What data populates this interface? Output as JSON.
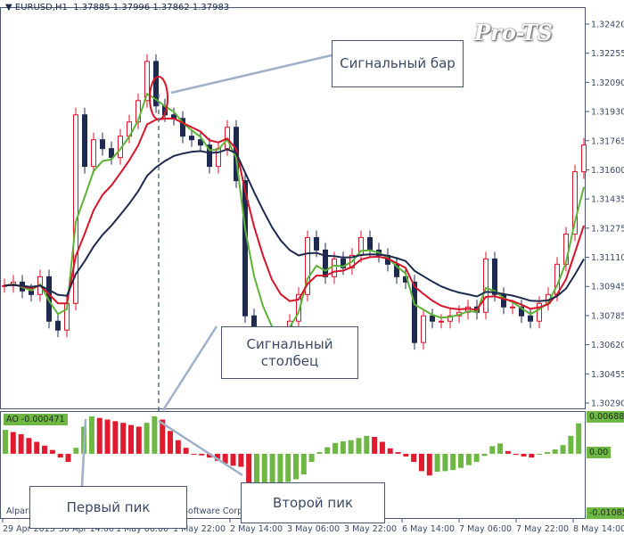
{
  "header": {
    "symbol": "EURUSD,H1",
    "ohlc": "1.37885 1.37996 1.37862 1.37983"
  },
  "watermark": "Pro-TS",
  "annotations": {
    "signal_bar": "Сигнальный бар",
    "signal_column": "Сигнальный столбец",
    "first_peak": "Первый пик",
    "second_peak": "Второй пик"
  },
  "footer": {
    "left": "Alpari",
    "right": "Software Corp"
  },
  "colors": {
    "bull": "#d8132a",
    "bear": "#1e2b4e",
    "fast_ma": "#5cb335",
    "mid_ma": "#d8132a",
    "slow_ma": "#1e2b4e",
    "ao_up": "#6fb744",
    "ao_down": "#e01b2f",
    "annotation_line": "#9fb0c8"
  },
  "chart_data": [
    {
      "type": "candlestick",
      "title": "EURUSD,H1",
      "ylim": [
        1.3029,
        1.3242
      ],
      "y_ticks": [
        "1.32420",
        "1.32255",
        "1.32090",
        "1.31930",
        "1.31765",
        "1.31600",
        "1.31435",
        "1.31275",
        "1.31110",
        "1.30945",
        "1.30785",
        "1.30620",
        "1.30455",
        "1.30290"
      ],
      "x_ticks": [
        "29 Apr 2013",
        "30 Apr 14:00",
        "1 May 06:00",
        "1 May 22:00",
        "2 May 14:00",
        "3 May 06:00",
        "3 May 22:00",
        "6 May 14:00",
        "7 May 06:00",
        "7 May 22:00",
        "8 May 14:00"
      ],
      "close": [
        1.3095,
        1.3097,
        1.3092,
        1.309,
        1.31,
        1.3075,
        1.307,
        1.3085,
        1.3191,
        1.3162,
        1.3177,
        1.3172,
        1.3167,
        1.3179,
        1.3187,
        1.3199,
        1.3221,
        1.3196,
        1.3191,
        1.3189,
        1.3179,
        1.3177,
        1.3174,
        1.3162,
        1.3172,
        1.3184,
        1.3154,
        1.3078,
        1.3068,
        1.3063,
        1.3058,
        1.3065,
        1.3075,
        1.309,
        1.3122,
        1.3115,
        1.31,
        1.311,
        1.3105,
        1.3112,
        1.3122,
        1.3115,
        1.3112,
        1.3107,
        1.31,
        1.3097,
        1.3063,
        1.3078,
        1.3075,
        1.3075,
        1.3078,
        1.308,
        1.3083,
        1.308,
        1.311,
        1.309,
        1.3083,
        1.3083,
        1.3078,
        1.3075,
        1.3085,
        1.309,
        1.3107,
        1.3124,
        1.3159,
        1.3174
      ]
    },
    {
      "type": "bar",
      "title": "AO",
      "label": "AO -0.000471",
      "ylim": [
        -0.010857,
        0.006881
      ],
      "y_ticks": [
        "0.006881",
        "0.00",
        "-0.010857"
      ],
      "values": [
        0.0044,
        0.004,
        0.0036,
        0.0029,
        0.0022,
        0.0015,
        0.0007,
        -0.0007,
        -0.0015,
        0.0011,
        0.005,
        0.0069,
        0.0066,
        0.0063,
        0.006,
        0.0057,
        0.0053,
        0.005,
        0.0057,
        0.0069,
        0.0063,
        0.0042,
        0.0025,
        0.0011,
        -0.0001,
        -0.0003,
        -0.0007,
        -0.0013,
        -0.0018,
        -0.0022,
        -0.0024,
        -0.0076,
        -0.007,
        -0.006,
        -0.0058,
        -0.0056,
        -0.0052,
        -0.0047,
        -0.0038,
        -0.0015,
        0.0003,
        0.0012,
        0.002,
        0.0023,
        0.0025,
        0.0029,
        0.0033,
        0.0031,
        0.0022,
        0.001,
        0.0003,
        -0.0005,
        -0.0015,
        -0.0032,
        -0.004,
        -0.0033,
        -0.0032,
        -0.003,
        -0.0026,
        -0.0021,
        -0.0015,
        -0.0004,
        0.0014,
        0.0019,
        0.0005,
        -0.0002,
        -0.0005,
        -0.0007,
        -0.0001,
        0.0003,
        0.0008,
        0.0016,
        0.0033,
        0.0056
      ]
    }
  ]
}
